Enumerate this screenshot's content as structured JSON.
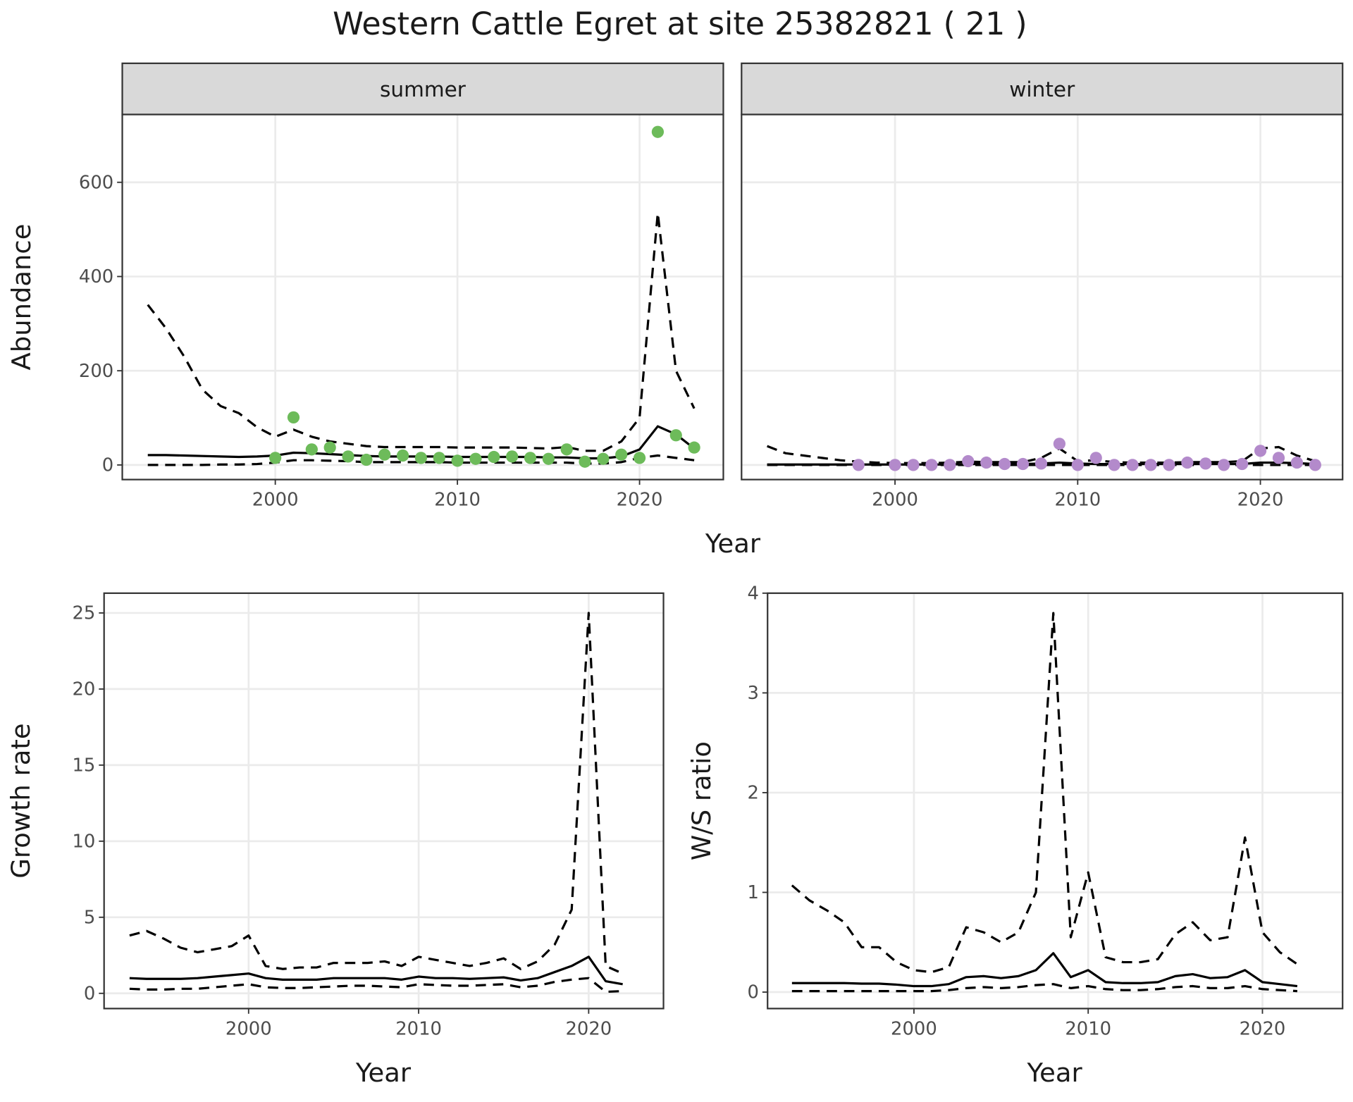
{
  "title": "Western Cattle Egret at site 25382821 ( 21 )",
  "chart_data": [
    {
      "type": "line",
      "strip": "summer",
      "ylabel": "Abundance",
      "xlabel": "Year",
      "x": [
        1993,
        1994,
        1995,
        1996,
        1997,
        1998,
        1999,
        2000,
        2001,
        2002,
        2003,
        2004,
        2005,
        2006,
        2007,
        2008,
        2009,
        2010,
        2011,
        2012,
        2013,
        2014,
        2015,
        2016,
        2017,
        2018,
        2019,
        2020,
        2021,
        2022,
        2023
      ],
      "series": [
        {
          "style": "solid",
          "color": "#000000",
          "values": [
            21,
            21,
            20,
            19,
            18,
            17,
            18,
            20,
            26,
            25,
            23,
            21,
            19,
            18,
            18,
            18,
            18,
            17,
            17,
            17,
            17,
            17,
            16,
            16,
            14,
            14,
            18,
            33,
            82,
            65,
            35
          ]
        },
        {
          "style": "dashed",
          "color": "#000000",
          "values": [
            340,
            290,
            230,
            160,
            125,
            110,
            80,
            60,
            75,
            60,
            50,
            45,
            40,
            38,
            38,
            38,
            38,
            37,
            37,
            37,
            37,
            36,
            35,
            38,
            30,
            30,
            50,
            100,
            535,
            200,
            120
          ]
        },
        {
          "style": "dashed",
          "color": "#000000",
          "values": [
            0,
            0,
            0,
            0,
            1,
            1,
            2,
            5,
            10,
            10,
            9,
            8,
            6,
            6,
            6,
            6,
            6,
            5,
            5,
            5,
            5,
            5,
            5,
            5,
            3,
            3,
            6,
            15,
            20,
            15,
            10
          ]
        },
        {
          "style": "points",
          "color": "#6dbb5a",
          "x": [
            2000,
            2001,
            2002,
            2003,
            2004,
            2005,
            2006,
            2007,
            2008,
            2009,
            2010,
            2011,
            2012,
            2013,
            2014,
            2015,
            2016,
            2017,
            2018,
            2019,
            2020,
            2021,
            2022,
            2023
          ],
          "values": [
            15,
            101,
            33,
            37,
            18,
            11,
            22,
            20,
            15,
            15,
            9,
            13,
            17,
            18,
            15,
            13,
            33,
            7,
            13,
            22,
            15,
            707,
            63,
            37
          ]
        }
      ],
      "xlim": [
        1991.6,
        2024.6
      ],
      "xticks": [
        2000,
        2010,
        2020
      ],
      "ylim": [
        -31,
        744
      ],
      "yticks": [
        0,
        200,
        400,
        600
      ],
      "ytick_labels": true,
      "grid": true
    },
    {
      "type": "line",
      "strip": "winter",
      "x": [
        1993,
        1994,
        1995,
        1996,
        1997,
        1998,
        1999,
        2000,
        2001,
        2002,
        2003,
        2004,
        2005,
        2006,
        2007,
        2008,
        2009,
        2010,
        2011,
        2012,
        2013,
        2014,
        2015,
        2016,
        2017,
        2018,
        2019,
        2020,
        2021,
        2022,
        2023
      ],
      "series": [
        {
          "style": "solid",
          "color": "#000000",
          "values": [
            1,
            1,
            1,
            1,
            1,
            1,
            1,
            1,
            1,
            1,
            1,
            2,
            2,
            2,
            2,
            3,
            5,
            3,
            2,
            2,
            2,
            2,
            2,
            2,
            2,
            2,
            2,
            5,
            5,
            4,
            2
          ]
        },
        {
          "style": "dashed",
          "color": "#000000",
          "values": [
            40,
            25,
            20,
            15,
            10,
            7,
            5,
            4,
            4,
            4,
            5,
            7,
            6,
            6,
            6,
            15,
            35,
            8,
            10,
            6,
            5,
            5,
            5,
            6,
            6,
            6,
            8,
            35,
            38,
            20,
            8
          ]
        },
        {
          "style": "dashed",
          "color": "#000000",
          "values": [
            0,
            0,
            0,
            0,
            0,
            0,
            0,
            0,
            0,
            0,
            0,
            0,
            0,
            0,
            0,
            0,
            0,
            0,
            0,
            0,
            0,
            0,
            0,
            0,
            0,
            0,
            0,
            0,
            0,
            0,
            0
          ]
        },
        {
          "style": "points",
          "color": "#b38acb",
          "x": [
            1998,
            2000,
            2001,
            2002,
            2003,
            2004,
            2005,
            2006,
            2007,
            2008,
            2009,
            2010,
            2011,
            2012,
            2013,
            2014,
            2015,
            2016,
            2017,
            2018,
            2019,
            2020,
            2021,
            2022,
            2023
          ],
          "values": [
            0,
            0,
            0,
            0,
            0,
            8,
            5,
            2,
            2,
            3,
            45,
            0,
            15,
            0,
            0,
            0,
            0,
            5,
            3,
            0,
            2,
            30,
            15,
            5,
            0
          ]
        }
      ],
      "xlim": [
        1991.6,
        2024.5
      ],
      "xticks": [
        2000,
        2010,
        2020
      ],
      "ylim": [
        -31,
        744
      ],
      "yticks": [
        0,
        200,
        400,
        600
      ],
      "ytick_labels": false,
      "grid": true
    },
    {
      "type": "line",
      "ylabel": "Growth rate",
      "xlabel": "Year",
      "x": [
        1993,
        1994,
        1995,
        1996,
        1997,
        1998,
        1999,
        2000,
        2001,
        2002,
        2003,
        2004,
        2005,
        2006,
        2007,
        2008,
        2009,
        2010,
        2011,
        2012,
        2013,
        2014,
        2015,
        2016,
        2017,
        2018,
        2019,
        2020,
        2021,
        2022
      ],
      "series": [
        {
          "style": "solid",
          "color": "#000000",
          "values": [
            1.0,
            0.95,
            0.95,
            0.95,
            1.0,
            1.1,
            1.2,
            1.3,
            1.0,
            0.9,
            0.9,
            0.9,
            1.0,
            1.0,
            1.0,
            1.0,
            0.9,
            1.1,
            1.0,
            1.0,
            0.95,
            1.0,
            1.05,
            0.85,
            1.0,
            1.4,
            1.8,
            2.4,
            0.8,
            0.6
          ]
        },
        {
          "style": "dashed",
          "color": "#000000",
          "values": [
            3.8,
            4.1,
            3.6,
            3.0,
            2.7,
            2.9,
            3.1,
            3.8,
            1.8,
            1.6,
            1.7,
            1.7,
            2.0,
            2.0,
            2.0,
            2.1,
            1.8,
            2.4,
            2.2,
            2.0,
            1.8,
            2.0,
            2.3,
            1.6,
            2.1,
            3.2,
            5.5,
            25,
            1.8,
            1.3
          ]
        },
        {
          "style": "dashed",
          "color": "#000000",
          "values": [
            0.3,
            0.25,
            0.25,
            0.3,
            0.3,
            0.4,
            0.5,
            0.6,
            0.4,
            0.35,
            0.35,
            0.4,
            0.45,
            0.5,
            0.5,
            0.45,
            0.4,
            0.6,
            0.55,
            0.5,
            0.5,
            0.55,
            0.6,
            0.4,
            0.5,
            0.75,
            0.9,
            1.0,
            0.1,
            0.15
          ]
        }
      ],
      "xlim": [
        1991.5,
        2024.4
      ],
      "xticks": [
        2000,
        2010,
        2020
      ],
      "ylim": [
        -1.0,
        26.3
      ],
      "yticks": [
        0,
        5,
        10,
        15,
        20,
        25
      ],
      "ytick_labels": true,
      "grid": true
    },
    {
      "type": "line",
      "ylabel": "W/S ratio",
      "xlabel": "Year",
      "x": [
        1993,
        1994,
        1995,
        1996,
        1997,
        1998,
        1999,
        2000,
        2001,
        2002,
        2003,
        2004,
        2005,
        2006,
        2007,
        2008,
        2009,
        2010,
        2011,
        2012,
        2013,
        2014,
        2015,
        2016,
        2017,
        2018,
        2019,
        2020,
        2021,
        2022
      ],
      "series": [
        {
          "style": "solid",
          "color": "#000000",
          "values": [
            0.09,
            0.09,
            0.09,
            0.09,
            0.085,
            0.085,
            0.075,
            0.06,
            0.06,
            0.08,
            0.15,
            0.16,
            0.14,
            0.16,
            0.22,
            0.39,
            0.15,
            0.22,
            0.1,
            0.09,
            0.09,
            0.1,
            0.16,
            0.18,
            0.14,
            0.15,
            0.22,
            0.1,
            0.08,
            0.06
          ]
        },
        {
          "style": "dashed",
          "color": "#000000",
          "values": [
            1.07,
            0.92,
            0.82,
            0.7,
            0.45,
            0.45,
            0.3,
            0.22,
            0.2,
            0.25,
            0.65,
            0.6,
            0.5,
            0.6,
            1.0,
            3.8,
            0.55,
            1.2,
            0.35,
            0.3,
            0.3,
            0.33,
            0.58,
            0.7,
            0.52,
            0.55,
            1.55,
            0.6,
            0.4,
            0.28
          ]
        },
        {
          "style": "dashed",
          "color": "#000000",
          "values": [
            0.01,
            0.01,
            0.01,
            0.01,
            0.01,
            0.01,
            0.01,
            0.01,
            0.01,
            0.02,
            0.04,
            0.05,
            0.04,
            0.05,
            0.07,
            0.08,
            0.04,
            0.06,
            0.03,
            0.02,
            0.02,
            0.03,
            0.05,
            0.06,
            0.04,
            0.04,
            0.06,
            0.03,
            0.02,
            0.01
          ]
        }
      ],
      "xlim": [
        1991.6,
        2024.6
      ],
      "xticks": [
        2000,
        2010,
        2020
      ],
      "ylim": [
        -0.165,
        4.0
      ],
      "yticks": [
        0,
        1,
        2,
        3,
        4
      ],
      "ytick_labels": true,
      "grid": true
    }
  ]
}
